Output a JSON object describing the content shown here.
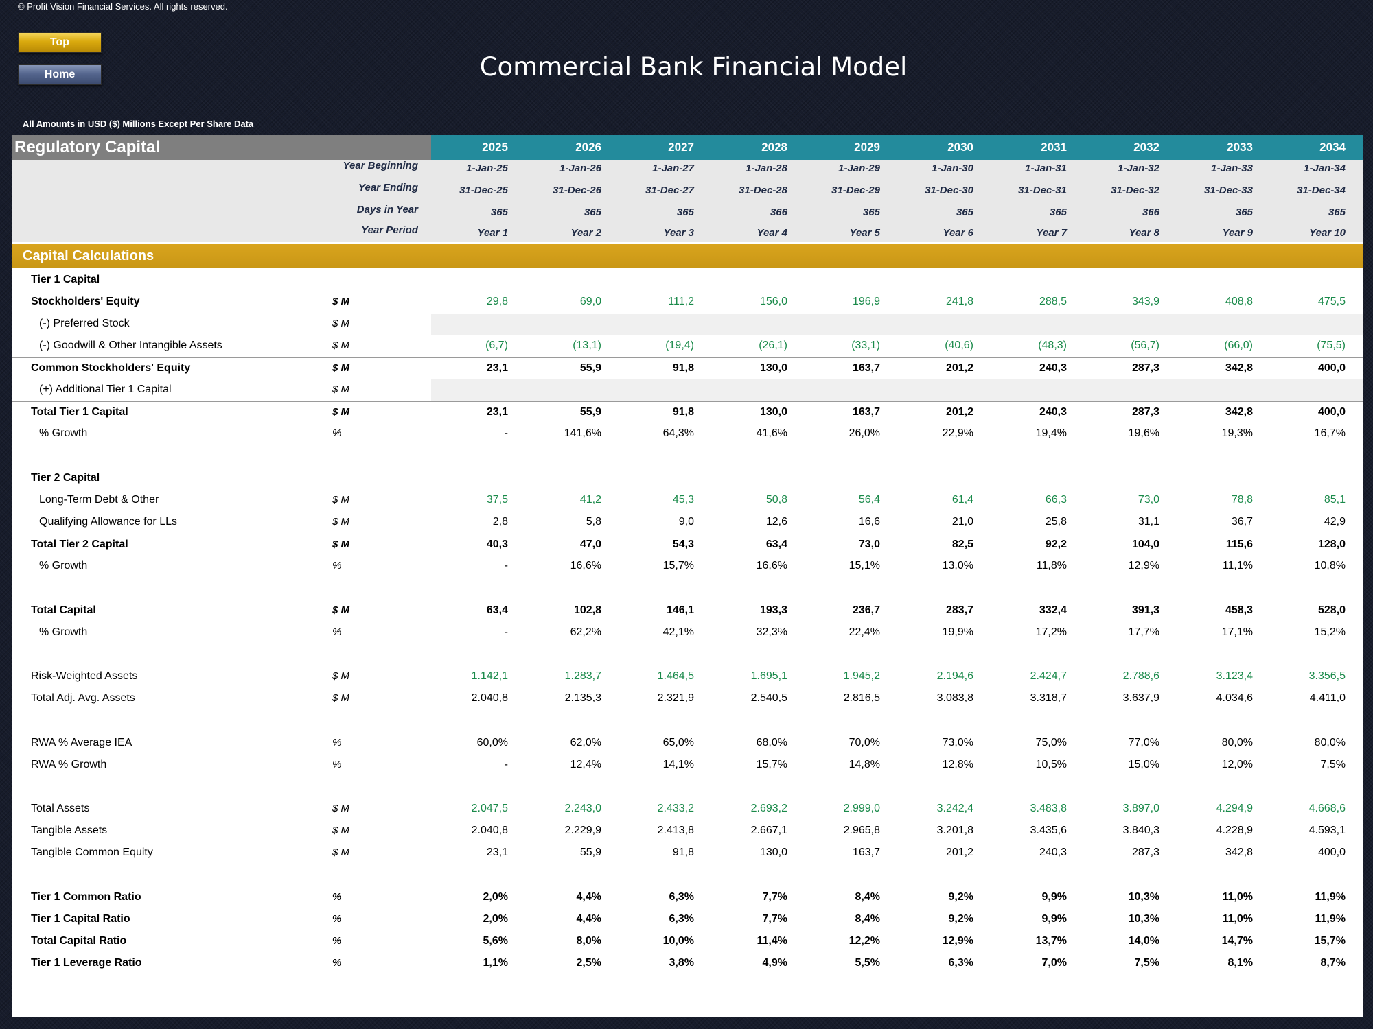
{
  "copyright": "© Profit Vision Financial Services. All rights reserved.",
  "buttons": {
    "top": "Top",
    "home": "Home"
  },
  "title": "Commercial Bank Financial Model",
  "subtitle": "All Amounts in  USD ($) Millions Except Per Share Data",
  "sheet": {
    "title": "Regulatory Capital",
    "years": [
      "2025",
      "2026",
      "2027",
      "2028",
      "2029",
      "2030",
      "2031",
      "2032",
      "2033",
      "2034"
    ],
    "meta": [
      {
        "label": "Year Beginning",
        "values": [
          "1-Jan-25",
          "1-Jan-26",
          "1-Jan-27",
          "1-Jan-28",
          "1-Jan-29",
          "1-Jan-30",
          "1-Jan-31",
          "1-Jan-32",
          "1-Jan-33",
          "1-Jan-34"
        ]
      },
      {
        "label": "Year Ending",
        "values": [
          "31-Dec-25",
          "31-Dec-26",
          "31-Dec-27",
          "31-Dec-28",
          "31-Dec-29",
          "31-Dec-30",
          "31-Dec-31",
          "31-Dec-32",
          "31-Dec-33",
          "31-Dec-34"
        ]
      },
      {
        "label": "Days in Year",
        "values": [
          "365",
          "365",
          "365",
          "366",
          "365",
          "365",
          "365",
          "366",
          "365",
          "365"
        ]
      },
      {
        "label": "Year Period",
        "values": [
          "Year 1",
          "Year 2",
          "Year 3",
          "Year 4",
          "Year 5",
          "Year 6",
          "Year 7",
          "Year 8",
          "Year 9",
          "Year 10"
        ]
      }
    ],
    "section": "Capital Calculations",
    "rows": [
      {
        "label": "Tier 1 Capital",
        "unit": "",
        "values": []
      },
      {
        "label": "Stockholders' Equity",
        "unit": "$ M",
        "values": [
          "29,8",
          "69,0",
          "111,2",
          "156,0",
          "196,9",
          "241,8",
          "288,5",
          "343,9",
          "408,8",
          "475,5"
        ]
      },
      {
        "label": "(-) Preferred Stock",
        "unit": "$ M",
        "values": []
      },
      {
        "label": "(-) Goodwill & Other Intangible Assets",
        "unit": "$ M",
        "values": [
          "(6,7)",
          "(13,1)",
          "(19,4)",
          "(26,1)",
          "(33,1)",
          "(40,6)",
          "(48,3)",
          "(56,7)",
          "(66,0)",
          "(75,5)"
        ]
      },
      {
        "label": "Common Stockholders' Equity",
        "unit": "$ M",
        "values": [
          "23,1",
          "55,9",
          "91,8",
          "130,0",
          "163,7",
          "201,2",
          "240,3",
          "287,3",
          "342,8",
          "400,0"
        ]
      },
      {
        "label": "(+) Additional Tier 1 Capital",
        "unit": "$ M",
        "values": []
      },
      {
        "label": "Total Tier 1 Capital",
        "unit": "$ M",
        "values": [
          "23,1",
          "55,9",
          "91,8",
          "130,0",
          "163,7",
          "201,2",
          "240,3",
          "287,3",
          "342,8",
          "400,0"
        ]
      },
      {
        "label": "% Growth",
        "unit": "%",
        "values": [
          "-",
          "141,6%",
          "64,3%",
          "41,6%",
          "26,0%",
          "22,9%",
          "19,4%",
          "19,6%",
          "19,3%",
          "16,7%"
        ]
      },
      {
        "label": "Tier 2 Capital",
        "unit": "",
        "values": []
      },
      {
        "label": "Long-Term Debt & Other",
        "unit": "$ M",
        "values": [
          "37,5",
          "41,2",
          "45,3",
          "50,8",
          "56,4",
          "61,4",
          "66,3",
          "73,0",
          "78,8",
          "85,1"
        ]
      },
      {
        "label": "Qualifying Allowance for LLs",
        "unit": "$ M",
        "values": [
          "2,8",
          "5,8",
          "9,0",
          "12,6",
          "16,6",
          "21,0",
          "25,8",
          "31,1",
          "36,7",
          "42,9"
        ]
      },
      {
        "label": "Total Tier 2 Capital",
        "unit": "$ M",
        "values": [
          "40,3",
          "47,0",
          "54,3",
          "63,4",
          "73,0",
          "82,5",
          "92,2",
          "104,0",
          "115,6",
          "128,0"
        ]
      },
      {
        "label": "% Growth",
        "unit": "%",
        "values": [
          "-",
          "16,6%",
          "15,7%",
          "16,6%",
          "15,1%",
          "13,0%",
          "11,8%",
          "12,9%",
          "11,1%",
          "10,8%"
        ]
      },
      {
        "label": "Total Capital",
        "unit": "$ M",
        "values": [
          "63,4",
          "102,8",
          "146,1",
          "193,3",
          "236,7",
          "283,7",
          "332,4",
          "391,3",
          "458,3",
          "528,0"
        ]
      },
      {
        "label": "% Growth",
        "unit": "%",
        "values": [
          "-",
          "62,2%",
          "42,1%",
          "32,3%",
          "22,4%",
          "19,9%",
          "17,2%",
          "17,7%",
          "17,1%",
          "15,2%"
        ]
      },
      {
        "label": "Risk-Weighted Assets",
        "unit": "$ M",
        "values": [
          "1.142,1",
          "1.283,7",
          "1.464,5",
          "1.695,1",
          "1.945,2",
          "2.194,6",
          "2.424,7",
          "2.788,6",
          "3.123,4",
          "3.356,5"
        ]
      },
      {
        "label": "Total Adj. Avg. Assets",
        "unit": "$ M",
        "values": [
          "2.040,8",
          "2.135,3",
          "2.321,9",
          "2.540,5",
          "2.816,5",
          "3.083,8",
          "3.318,7",
          "3.637,9",
          "4.034,6",
          "4.411,0"
        ]
      },
      {
        "label": "RWA % Average IEA",
        "unit": "%",
        "values": [
          "60,0%",
          "62,0%",
          "65,0%",
          "68,0%",
          "70,0%",
          "73,0%",
          "75,0%",
          "77,0%",
          "80,0%",
          "80,0%"
        ]
      },
      {
        "label": "RWA % Growth",
        "unit": "%",
        "values": [
          "-",
          "12,4%",
          "14,1%",
          "15,7%",
          "14,8%",
          "12,8%",
          "10,5%",
          "15,0%",
          "12,0%",
          "7,5%"
        ]
      },
      {
        "label": "Total Assets",
        "unit": "$ M",
        "values": [
          "2.047,5",
          "2.243,0",
          "2.433,2",
          "2.693,2",
          "2.999,0",
          "3.242,4",
          "3.483,8",
          "3.897,0",
          "4.294,9",
          "4.668,6"
        ]
      },
      {
        "label": "Tangible Assets",
        "unit": "$ M",
        "values": [
          "2.040,8",
          "2.229,9",
          "2.413,8",
          "2.667,1",
          "2.965,8",
          "3.201,8",
          "3.435,6",
          "3.840,3",
          "4.228,9",
          "4.593,1"
        ]
      },
      {
        "label": "Tangible Common Equity",
        "unit": "$ M",
        "values": [
          "23,1",
          "55,9",
          "91,8",
          "130,0",
          "163,7",
          "201,2",
          "240,3",
          "287,3",
          "342,8",
          "400,0"
        ]
      },
      {
        "label": "Tier 1 Common Ratio",
        "unit": "%",
        "values": [
          "2,0%",
          "4,4%",
          "6,3%",
          "7,7%",
          "8,4%",
          "9,2%",
          "9,9%",
          "10,3%",
          "11,0%",
          "11,9%"
        ]
      },
      {
        "label": "Tier 1 Capital Ratio",
        "unit": "%",
        "values": [
          "2,0%",
          "4,4%",
          "6,3%",
          "7,7%",
          "8,4%",
          "9,2%",
          "9,9%",
          "10,3%",
          "11,0%",
          "11,9%"
        ]
      },
      {
        "label": "Total Capital Ratio",
        "unit": "%",
        "values": [
          "5,6%",
          "8,0%",
          "10,0%",
          "11,4%",
          "12,2%",
          "12,9%",
          "13,7%",
          "14,0%",
          "14,7%",
          "15,7%"
        ]
      },
      {
        "label": "Tier 1 Leverage Ratio",
        "unit": "%",
        "values": [
          "1,1%",
          "2,5%",
          "3,8%",
          "4,9%",
          "5,5%",
          "6,3%",
          "7,0%",
          "7,5%",
          "8,1%",
          "8,7%"
        ]
      }
    ]
  },
  "colors": {
    "input_green": "#1a8a4a",
    "year_header": "#238b9c",
    "section_gold": "#d9a41d"
  }
}
